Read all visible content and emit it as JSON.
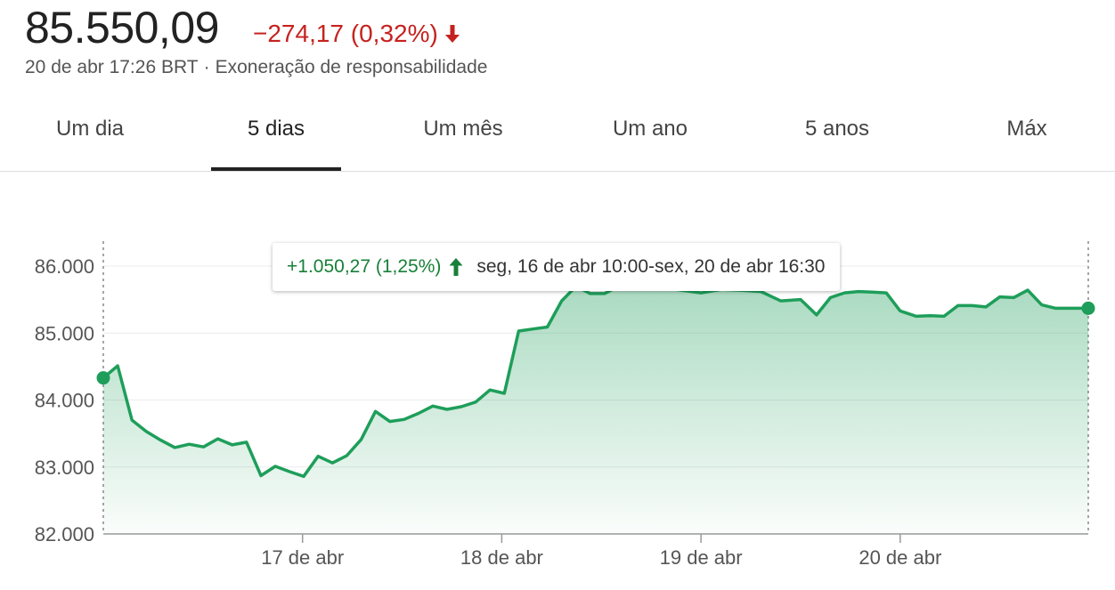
{
  "header": {
    "price": "85.550,09",
    "change": "−274,17 (0,32%)",
    "timestamp": "20 de abr 17:26 BRT",
    "separator": "·",
    "disclaimer": "Exoneração de responsabilidade"
  },
  "tabs": [
    {
      "label": "Um dia"
    },
    {
      "label": "5 dias"
    },
    {
      "label": "Um mês"
    },
    {
      "label": "Um ano"
    },
    {
      "label": "5 anos"
    },
    {
      "label": "Máx"
    }
  ],
  "active_tab": "5 dias",
  "tooltip": {
    "change": "+1.050,27 (1,25%)",
    "range": "seg, 16 de abr 10:00-sex, 20 de abr 16:30"
  },
  "colors": {
    "line": "#1e9e5a",
    "negative": "#c5221f",
    "positive": "#188038"
  },
  "chart_data": {
    "type": "area",
    "title": "",
    "xlabel": "",
    "ylabel": "",
    "ylim": [
      82000,
      86000
    ],
    "y_ticks": [
      82000,
      83000,
      84000,
      85000,
      86000
    ],
    "y_tick_labels": [
      "82.000",
      "83.000",
      "84.000",
      "85.000",
      "86.000"
    ],
    "x_tick_labels": [
      "17 de abr",
      "18 de abr",
      "19 de abr",
      "20 de abr"
    ],
    "grid": true,
    "legend": "none",
    "x_range": [
      0,
      4.944
    ],
    "series": [
      {
        "x": [
          0.0,
          0.072,
          0.144,
          0.216,
          0.288,
          0.359,
          0.431,
          0.503,
          0.575,
          0.647,
          0.719,
          0.791,
          0.863,
          0.935,
          1.006,
          1.078,
          1.15,
          1.222,
          1.294,
          1.366,
          1.438,
          1.51,
          1.582,
          1.654,
          1.725,
          1.797,
          1.869,
          1.941,
          2.013,
          2.085,
          2.157,
          2.229,
          2.301,
          2.373,
          2.444,
          2.516,
          2.588,
          2.66,
          2.732,
          2.804,
          2.876,
          3.0,
          3.1,
          3.2,
          3.3,
          3.4,
          3.5,
          3.58,
          3.65,
          3.72,
          3.79,
          3.86,
          3.93,
          4.0,
          4.08,
          4.15,
          4.22,
          4.29,
          4.36,
          4.43,
          4.5,
          4.57,
          4.64,
          4.71,
          4.78,
          4.85,
          4.944
        ],
        "values": [
          84330,
          84510,
          83700,
          83530,
          83400,
          83290,
          83340,
          83300,
          83420,
          83330,
          83370,
          82870,
          83010,
          82930,
          82860,
          83160,
          83060,
          83170,
          83410,
          83830,
          83680,
          83710,
          83800,
          83910,
          83860,
          83900,
          83970,
          84150,
          84100,
          85030,
          85060,
          85090,
          85480,
          85700,
          85590,
          85590,
          85700,
          85720,
          85700,
          85680,
          85650,
          85600,
          85650,
          85640,
          85620,
          85480,
          85500,
          85270,
          85530,
          85600,
          85620,
          85610,
          85600,
          85330,
          85250,
          85260,
          85250,
          85410,
          85410,
          85390,
          85540,
          85530,
          85640,
          85420,
          85370,
          85370,
          85370
        ]
      }
    ]
  }
}
